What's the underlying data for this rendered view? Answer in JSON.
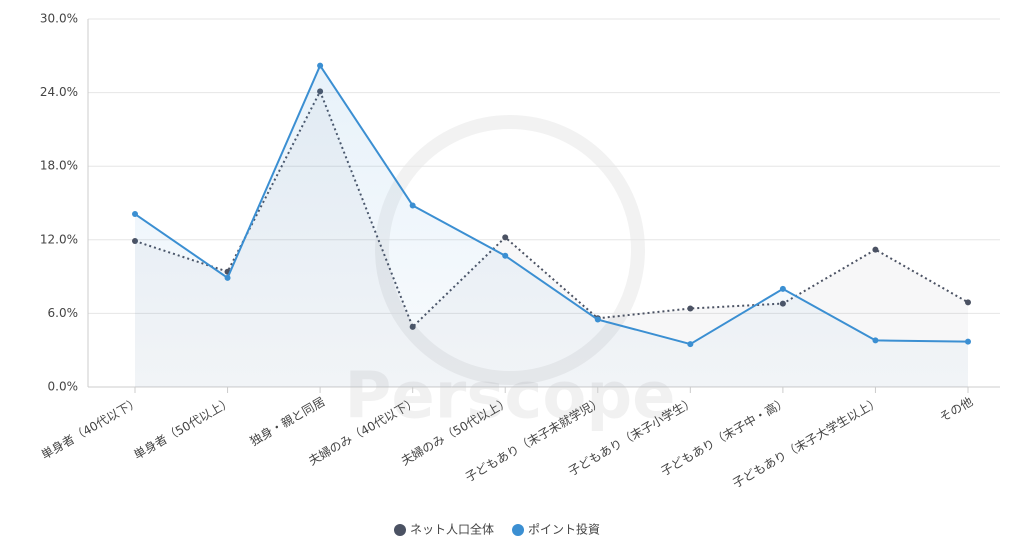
{
  "chart_data": {
    "type": "line",
    "watermark": "Perscope",
    "categories": [
      "単身者（40代以下）",
      "単身者（50代以上）",
      "独身・親と同居",
      "夫婦のみ（40代以下）",
      "夫婦のみ（50代以上）",
      "子どもあり（末子未就学児）",
      "子どもあり（末子小学生）",
      "子どもあり（末子中・高）",
      "子どもあり（末子大学生以上）",
      "その他"
    ],
    "series": [
      {
        "name": "ネット人口全体",
        "color": "#4b5263",
        "dashed": true,
        "values": [
          11.9,
          9.4,
          24.1,
          4.9,
          12.2,
          5.6,
          6.4,
          6.8,
          11.2,
          6.9
        ]
      },
      {
        "name": "ポイント投資",
        "color": "#3b8fd2",
        "dashed": false,
        "values": [
          14.1,
          8.9,
          26.2,
          14.8,
          10.7,
          5.5,
          3.5,
          8.0,
          3.8,
          3.7
        ]
      }
    ],
    "ylim": [
      0,
      30
    ],
    "yticks": [
      {
        "value": 0,
        "label": "0.0%"
      },
      {
        "value": 6,
        "label": "6.0%"
      },
      {
        "value": 12,
        "label": "12.0%"
      },
      {
        "value": 18,
        "label": "18.0%"
      },
      {
        "value": 24,
        "label": "24.0%"
      },
      {
        "value": 30,
        "label": "30.0%"
      }
    ],
    "legend": "bottom"
  }
}
